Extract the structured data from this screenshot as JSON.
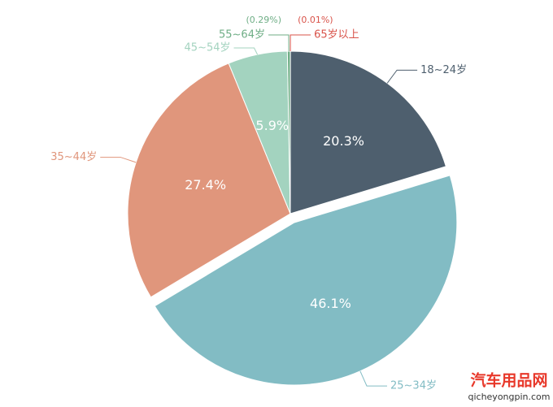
{
  "chart_data": {
    "type": "pie",
    "categories": [
      "65岁以上",
      "18~24岁",
      "25~34岁",
      "35~44岁",
      "45~54岁",
      "55~64岁"
    ],
    "values": [
      0.01,
      20.3,
      46.1,
      27.4,
      5.9,
      0.29
    ],
    "value_labels": [
      "(0.01%)",
      "20.3%",
      "46.1%",
      "27.4%",
      "5.9%",
      "(0.29%)"
    ],
    "colors": [
      "#d9534a",
      "#4e5f6e",
      "#82bcc4",
      "#e0967c",
      "#a3d3bf",
      "#6fae86"
    ],
    "exploded": "25~34岁"
  },
  "watermark": {
    "title": "汽车用品网",
    "url": "qicheyongpin.com"
  }
}
